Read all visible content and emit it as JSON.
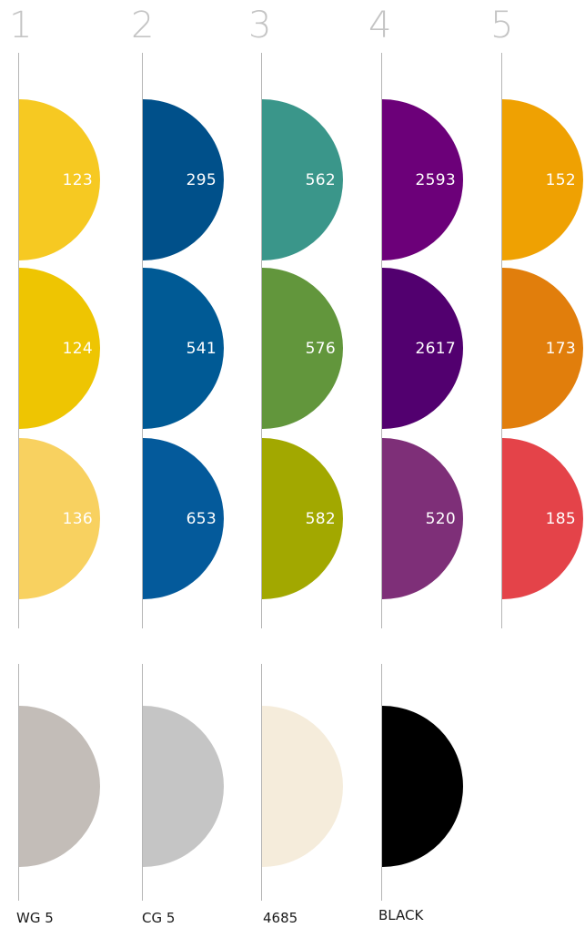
{
  "columns": [
    {
      "number": "1",
      "swatches": [
        {
          "code": "123",
          "color": "#F6C922"
        },
        {
          "code": "124",
          "color": "#EEC502"
        },
        {
          "code": "136",
          "color": "#F8D160"
        }
      ]
    },
    {
      "number": "2",
      "swatches": [
        {
          "code": "295",
          "color": "#00508A"
        },
        {
          "code": "541",
          "color": "#005A95"
        },
        {
          "code": "653",
          "color": "#045A9B"
        }
      ]
    },
    {
      "number": "3",
      "swatches": [
        {
          "code": "562",
          "color": "#3A968A"
        },
        {
          "code": "576",
          "color": "#62963C"
        },
        {
          "code": "582",
          "color": "#A2A800"
        }
      ]
    },
    {
      "number": "4",
      "swatches": [
        {
          "code": "2593",
          "color": "#6C0079"
        },
        {
          "code": "2617",
          "color": "#52006F"
        },
        {
          "code": "520",
          "color": "#7E2F78"
        }
      ]
    },
    {
      "number": "5",
      "swatches": [
        {
          "code": "152",
          "color": "#EFA102"
        },
        {
          "code": "173",
          "color": "#E17E0C"
        },
        {
          "code": "185",
          "color": "#E44349"
        }
      ]
    }
  ],
  "neutrals": [
    {
      "label": "WG 5",
      "color": "#C3BDB8"
    },
    {
      "label": "CG 5",
      "color": "#C5C5C5"
    },
    {
      "label": "4685",
      "color": "#F5ECDB"
    },
    {
      "label": "BLACK",
      "color": "#000000"
    }
  ]
}
